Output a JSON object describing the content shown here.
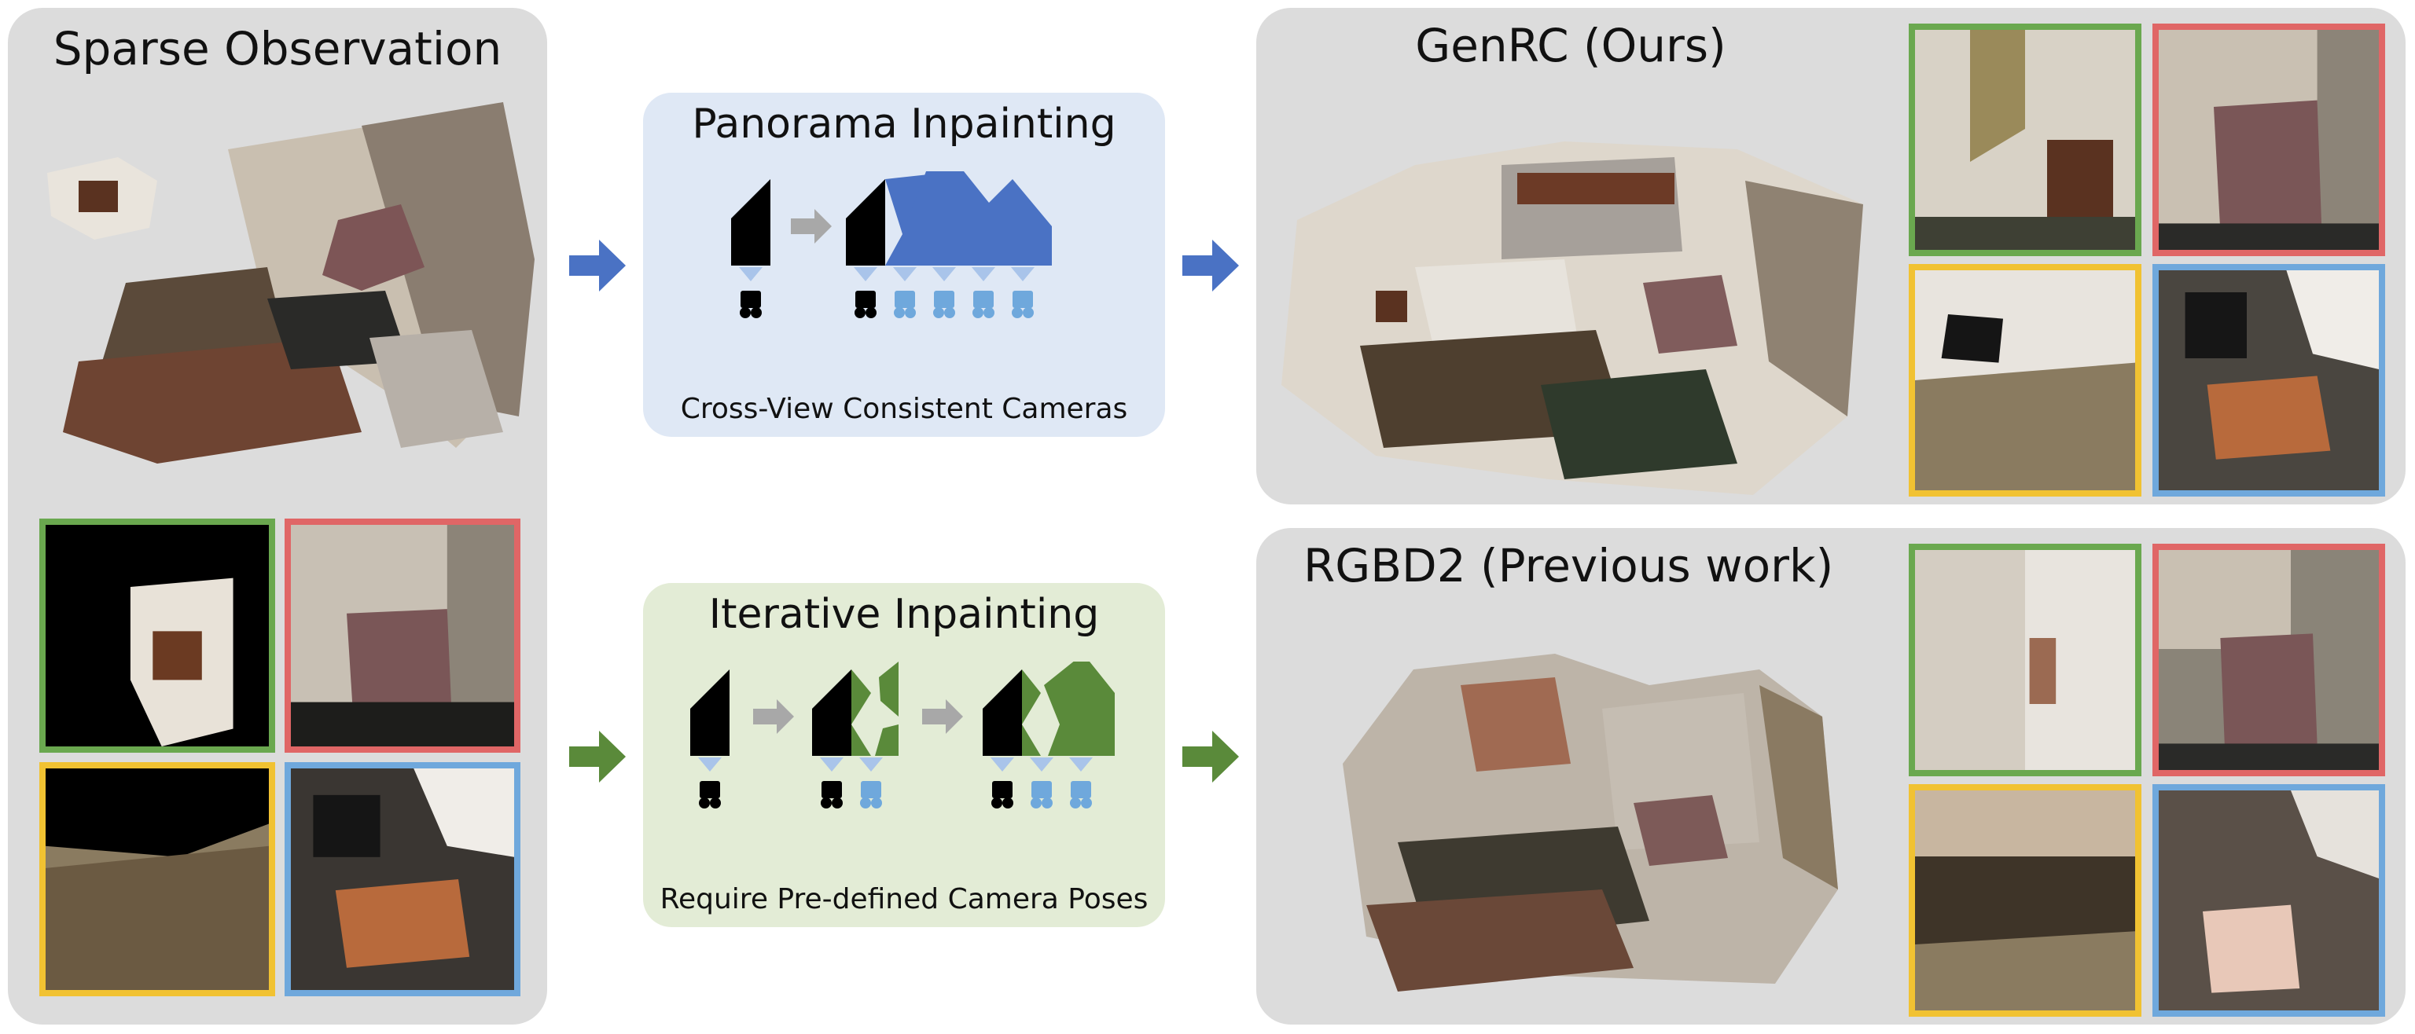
{
  "left_panel": {
    "title": "Sparse Observation"
  },
  "pipelines": {
    "top": {
      "title": "Panorama Inpainting",
      "caption": "Cross-View Consistent Cameras"
    },
    "bottom": {
      "title": "Iterative Inpainting",
      "caption": "Require Pre-defined Camera Poses"
    }
  },
  "results": {
    "top": {
      "title": "GenRC (Ours)"
    },
    "bottom": {
      "title": "RGBD2 (Previous work)"
    }
  },
  "view_frame_colors": [
    "#6aa84f",
    "#e06666",
    "#f1c232",
    "#6fa8dc"
  ],
  "accent_colors": {
    "blue": "#4a72c4",
    "green": "#5a8a3a",
    "gray_arrow": "#a8a8a8"
  },
  "icons": [
    "right-arrow-icon",
    "camera-icon",
    "camera-frustum-icon"
  ]
}
